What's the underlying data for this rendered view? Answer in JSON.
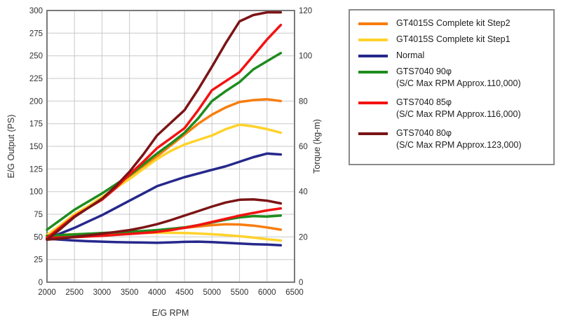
{
  "chart_data": {
    "type": "line",
    "title": "",
    "x": {
      "label": "E/G RPM",
      "min": 2000,
      "max": 6500,
      "ticks": [
        2000,
        2500,
        3000,
        3500,
        4000,
        4500,
        5000,
        5500,
        6000,
        6500
      ]
    },
    "y_left": {
      "label": "E/G Output (PS)",
      "min": 0,
      "max": 300,
      "ticks": [
        0,
        25,
        50,
        75,
        100,
        125,
        150,
        175,
        200,
        225,
        250,
        275,
        300
      ]
    },
    "y_right": {
      "label": "Torque (kg-m)",
      "min": 0,
      "max": 120,
      "ticks": [
        0,
        20,
        40,
        60,
        80,
        100,
        120
      ]
    },
    "grid_color": "#c9c9c9",
    "frame_color": "#7a7a7a",
    "legend_position": "right",
    "rpm": [
      2000,
      2250,
      2500,
      2750,
      3000,
      3250,
      3500,
      3750,
      4000,
      4250,
      4500,
      4750,
      5000,
      5250,
      5500,
      5750,
      6000,
      6250
    ],
    "series": [
      {
        "name": "GT4015S Complete kit Step2",
        "note": "",
        "color": "#f87d0e",
        "power_ps": [
          51,
          62,
          74,
          83,
          93,
          104,
          116,
          128,
          139,
          151,
          163,
          175,
          185,
          193,
          199,
          201,
          202,
          200
        ],
        "torque_kgm": [
          20.2,
          20.6,
          21.0,
          21.3,
          21.6,
          21.9,
          22.1,
          22.4,
          22.8,
          23.4,
          24.0,
          24.6,
          25.2,
          25.6,
          25.5,
          25.0,
          24.2,
          23.2
        ]
      },
      {
        "name": "GT4015S Complete kit Step1",
        "note": "",
        "color": "#ffd22b",
        "power_ps": [
          52,
          63,
          75,
          84,
          94,
          104,
          114,
          125,
          136,
          145,
          152,
          157,
          162,
          169,
          174,
          172,
          169,
          165
        ],
        "torque_kgm": [
          20.8,
          21.0,
          21.2,
          21.3,
          21.4,
          21.5,
          21.6,
          21.7,
          21.8,
          21.8,
          21.7,
          21.5,
          21.2,
          20.8,
          20.3,
          19.7,
          19.0,
          18.4
        ]
      },
      {
        "name": "Normal",
        "note": "",
        "color": "#26288c",
        "power_ps": [
          48,
          54,
          60,
          67,
          74,
          82,
          90,
          98,
          106,
          111,
          116,
          120,
          124,
          128,
          133,
          138,
          142,
          141
        ],
        "torque_kgm": [
          19.2,
          18.8,
          18.4,
          18.1,
          17.9,
          17.7,
          17.6,
          17.5,
          17.4,
          17.6,
          17.8,
          17.9,
          17.7,
          17.4,
          17.1,
          16.8,
          16.6,
          16.3
        ]
      },
      {
        "name": "GTS7040 90φ",
        "note": "(S/C Max RPM Approx.110,000)",
        "color": "#1e8c1e",
        "power_ps": [
          58,
          69,
          80,
          89,
          98,
          108,
          118,
          130,
          142,
          153,
          165,
          181,
          200,
          211,
          221,
          235,
          244,
          253
        ],
        "torque_kgm": [
          20.5,
          20.8,
          21.1,
          21.4,
          21.7,
          22.0,
          22.3,
          22.6,
          23.0,
          23.6,
          24.2,
          25.2,
          26.4,
          27.6,
          28.6,
          29.2,
          29.0,
          29.4
        ]
      },
      {
        "name": "GTS7040 85φ",
        "note": "(S/C Max RPM Approx.116,000)",
        "color": "#f21212",
        "power_ps": [
          49,
          61,
          73,
          82,
          91,
          104,
          119,
          133,
          148,
          159,
          170,
          190,
          212,
          222,
          232,
          250,
          268,
          284
        ],
        "torque_kgm": [
          19.5,
          19.7,
          19.9,
          20.2,
          20.5,
          20.9,
          21.3,
          21.7,
          22.2,
          23.0,
          24.0,
          25.2,
          26.6,
          28.0,
          29.4,
          30.6,
          31.7,
          32.6
        ]
      },
      {
        "name": "GTS7040 80φ",
        "note": "(S/C Max RPM Approx.123,000)",
        "color": "#7b1416",
        "power_ps": [
          47,
          59,
          72,
          82,
          92,
          106,
          122,
          141,
          162,
          176,
          190,
          213,
          238,
          264,
          288,
          295,
          298,
          298
        ],
        "torque_kgm": [
          18.8,
          19.3,
          20.0,
          20.7,
          21.4,
          22.2,
          23.0,
          24.2,
          25.6,
          27.4,
          29.4,
          31.4,
          33.4,
          35.2,
          36.4,
          36.6,
          36.0,
          34.8
        ]
      }
    ]
  }
}
